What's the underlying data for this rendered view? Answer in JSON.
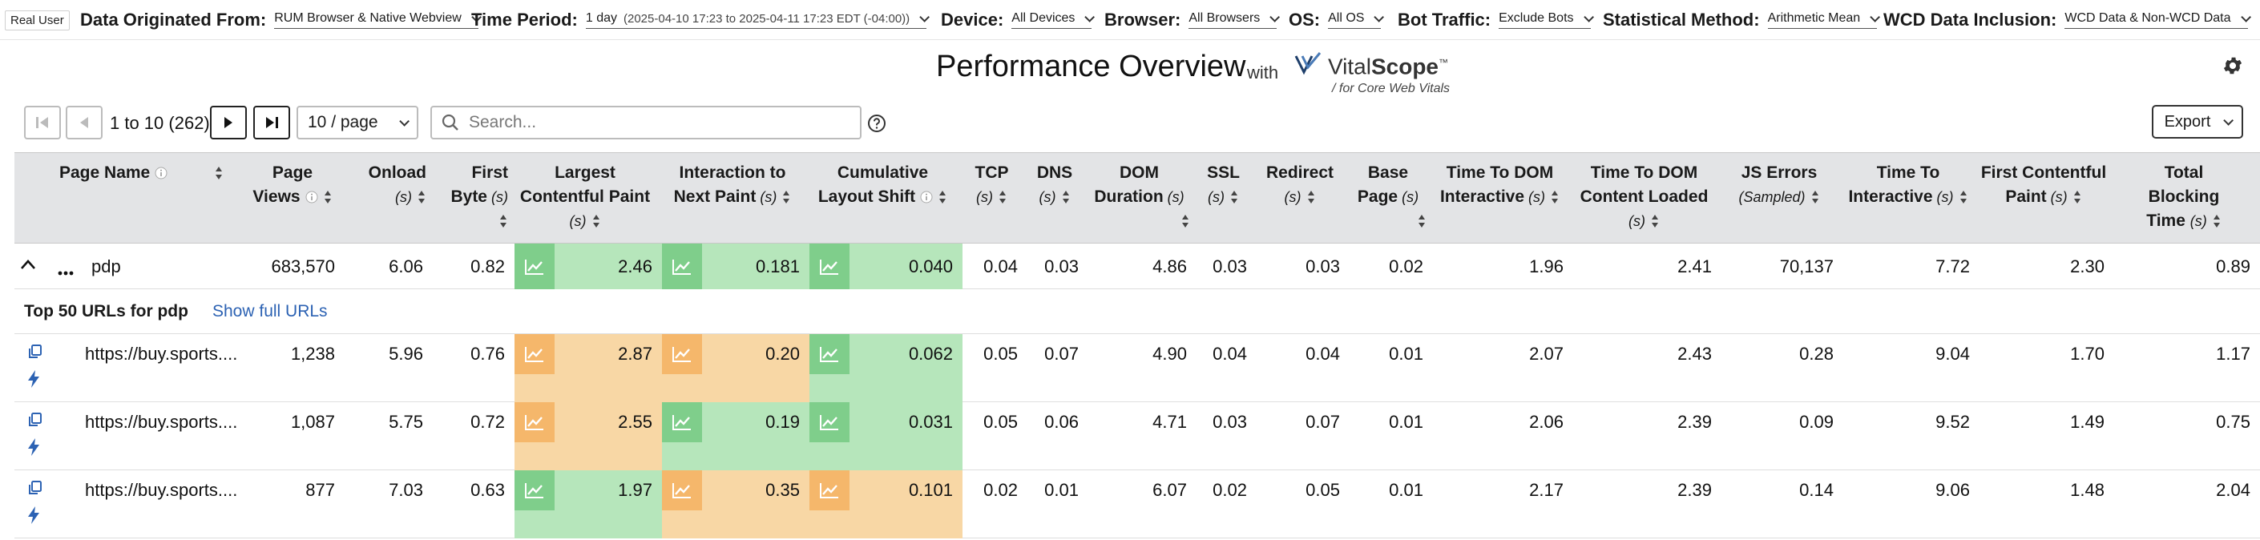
{
  "filters": {
    "mode_chip": "Real User",
    "origin": {
      "label": "Data Originated From:",
      "value": "RUM Browser & Native Webview"
    },
    "period": {
      "label": "Time Period:",
      "value": "1 day",
      "range": "(2025-04-10 17:23 to 2025-04-11 17:23 EDT (-04:00))"
    },
    "device": {
      "label": "Device:",
      "value": "All Devices"
    },
    "browser": {
      "label": "Browser:",
      "value": "All Browsers"
    },
    "os": {
      "label": "OS:",
      "value": "All OS"
    },
    "bot": {
      "label": "Bot Traffic:",
      "value": "Exclude Bots"
    },
    "stat": {
      "label": "Statistical Method:",
      "value": "Arithmetic Mean"
    },
    "wcd": {
      "label": "WCD Data Inclusion:",
      "value": "WCD Data & Non-WCD Data"
    }
  },
  "header": {
    "title": "Performance Overview",
    "with": "with",
    "brand_light": "Vital",
    "brand_bold": "Scope",
    "brand_tm": "™",
    "brand_tag": "for Core Web Vitals"
  },
  "pager": {
    "count": "1 to 10 (262)",
    "per_page": "10 / page",
    "search_placeholder": "Search...",
    "export": "Export"
  },
  "columns": [
    {
      "key": "page",
      "l1": "Page Name",
      "l2": "",
      "unit": ""
    },
    {
      "key": "views",
      "l1": "Page",
      "l2": "Views",
      "unit": ""
    },
    {
      "key": "onload",
      "l1": "Onload",
      "l2": "",
      "unit": "(s)"
    },
    {
      "key": "fb",
      "l1": "First",
      "l2": "Byte",
      "unit": "(s)"
    },
    {
      "key": "lcp",
      "l1": "Largest",
      "l2": "Contentful Paint",
      "unit": "(s)"
    },
    {
      "key": "inp",
      "l1": "Interaction to",
      "l2": "Next Paint",
      "unit": "(s)"
    },
    {
      "key": "cls",
      "l1": "Cumulative",
      "l2": "Layout Shift",
      "unit": ""
    },
    {
      "key": "tcp",
      "l1": "TCP",
      "l2": "",
      "unit": "(s)"
    },
    {
      "key": "dns",
      "l1": "DNS",
      "l2": "",
      "unit": "(s)"
    },
    {
      "key": "dom",
      "l1": "DOM",
      "l2": "Duration",
      "unit": "(s)"
    },
    {
      "key": "ssl",
      "l1": "SSL",
      "l2": "",
      "unit": "(s)"
    },
    {
      "key": "redir",
      "l1": "Redirect",
      "l2": "",
      "unit": "(s)"
    },
    {
      "key": "base",
      "l1": "Base",
      "l2": "Page",
      "unit": "(s)"
    },
    {
      "key": "tdi",
      "l1": "Time To DOM",
      "l2": "Interactive",
      "unit": "(s)"
    },
    {
      "key": "tdcl",
      "l1": "Time To DOM",
      "l2": "Content Loaded",
      "unit": "(s)"
    },
    {
      "key": "js",
      "l1": "JS Errors",
      "l2": "",
      "unit": "(Sampled)"
    },
    {
      "key": "tti",
      "l1": "Time To",
      "l2": "Interactive",
      "unit": "(s)"
    },
    {
      "key": "fcp",
      "l1": "First Contentful",
      "l2": "Paint",
      "unit": "(s)"
    },
    {
      "key": "tbt",
      "l1": "Total",
      "l2": "Blocking",
      "unit": "Time (s)"
    }
  ],
  "group": {
    "name": "pdp",
    "values": [
      "683,570",
      "6.06",
      "0.82",
      "2.46",
      "0.181",
      "0.040",
      "0.04",
      "0.03",
      "4.86",
      "0.03",
      "0.03",
      "0.02",
      "1.96",
      "2.41",
      "70,137",
      "7.72",
      "2.30",
      "0.89"
    ],
    "lcp_status": "good",
    "inp_status": "good",
    "cls_status": "good"
  },
  "subheader": {
    "label": "Top 50 URLs for pdp",
    "link": "Show full URLs"
  },
  "rows": [
    {
      "url": "https://buy.sports....",
      "values": [
        "1,238",
        "5.96",
        "0.76",
        "2.87",
        "0.20",
        "0.062",
        "0.05",
        "0.07",
        "4.90",
        "0.04",
        "0.04",
        "0.01",
        "2.07",
        "2.43",
        "0.28",
        "9.04",
        "1.70",
        "1.17"
      ],
      "lcp_status": "needs-improvement",
      "inp_status": "needs-improvement",
      "cls_status": "good"
    },
    {
      "url": "https://buy.sports....",
      "values": [
        "1,087",
        "5.75",
        "0.72",
        "2.55",
        "0.19",
        "0.031",
        "0.05",
        "0.06",
        "4.71",
        "0.03",
        "0.07",
        "0.01",
        "2.06",
        "2.39",
        "0.09",
        "9.52",
        "1.49",
        "0.75"
      ],
      "lcp_status": "needs-improvement",
      "inp_status": "good",
      "cls_status": "good"
    },
    {
      "url": "https://buy.sports....",
      "values": [
        "877",
        "7.03",
        "0.63",
        "1.97",
        "0.35",
        "0.101",
        "0.02",
        "0.01",
        "6.07",
        "0.02",
        "0.05",
        "0.01",
        "2.17",
        "2.39",
        "0.14",
        "9.06",
        "1.48",
        "2.04"
      ],
      "lcp_status": "good",
      "inp_status": "needs-improvement",
      "cls_status": "needs-improvement"
    }
  ],
  "colors": {
    "good": "#b6e6bb",
    "needs_improvement": "#f8d7a5",
    "link": "#2c62b3"
  }
}
